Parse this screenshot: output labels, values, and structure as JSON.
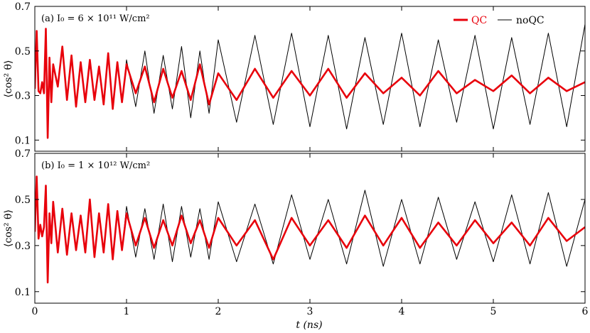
{
  "chart_data": {
    "type": "line",
    "xlabel": "t (ns)",
    "xlim": [
      0,
      6
    ],
    "xticks": [
      "0",
      "1",
      "2",
      "3",
      "4",
      "5",
      "6"
    ],
    "legend": {
      "placement": "top-right",
      "entries": [
        "QC",
        "noQC"
      ]
    },
    "colors": {
      "QC": "#e8000b",
      "noQC": "#000000"
    },
    "panels": [
      {
        "label": "(a) I₀ = 6 × 10¹¹ W/cm²",
        "ylabel": "⟨cos² θ⟩",
        "ylim": [
          0.05,
          0.7
        ],
        "yticks": [
          "0.1",
          "0.3",
          "0.5",
          "0.7"
        ],
        "series": [
          {
            "name": "QC",
            "x": [
              0,
              0.02,
              0.04,
              0.06,
              0.08,
              0.1,
              0.12,
              0.14,
              0.16,
              0.18,
              0.2,
              0.25,
              0.3,
              0.35,
              0.4,
              0.45,
              0.5,
              0.55,
              0.6,
              0.65,
              0.7,
              0.75,
              0.8,
              0.85,
              0.9,
              0.95,
              1.0,
              1.1,
              1.2,
              1.3,
              1.4,
              1.5,
              1.6,
              1.7,
              1.8,
              1.9,
              2.0,
              2.2,
              2.4,
              2.6,
              2.8,
              3.0,
              3.2,
              3.4,
              3.6,
              3.8,
              4.0,
              4.2,
              4.4,
              4.6,
              4.8,
              5.0,
              5.2,
              5.4,
              5.6,
              5.8,
              6.0
            ],
            "y": [
              0.33,
              0.59,
              0.32,
              0.31,
              0.36,
              0.31,
              0.6,
              0.11,
              0.47,
              0.27,
              0.44,
              0.34,
              0.52,
              0.28,
              0.48,
              0.25,
              0.45,
              0.27,
              0.46,
              0.28,
              0.43,
              0.26,
              0.49,
              0.24,
              0.45,
              0.27,
              0.44,
              0.31,
              0.43,
              0.27,
              0.42,
              0.29,
              0.41,
              0.28,
              0.44,
              0.26,
              0.4,
              0.28,
              0.42,
              0.29,
              0.41,
              0.3,
              0.42,
              0.29,
              0.4,
              0.31,
              0.38,
              0.3,
              0.41,
              0.31,
              0.37,
              0.32,
              0.39,
              0.31,
              0.38,
              0.32,
              0.36
            ]
          },
          {
            "name": "noQC",
            "x": [
              0,
              0.02,
              0.04,
              0.06,
              0.08,
              0.1,
              0.12,
              0.14,
              0.16,
              0.18,
              0.2,
              0.25,
              0.3,
              0.35,
              0.4,
              0.45,
              0.5,
              0.55,
              0.6,
              0.65,
              0.7,
              0.75,
              0.8,
              0.85,
              0.9,
              0.95,
              1.0,
              1.1,
              1.2,
              1.3,
              1.4,
              1.5,
              1.6,
              1.7,
              1.8,
              1.9,
              2.0,
              2.2,
              2.4,
              2.6,
              2.8,
              3.0,
              3.2,
              3.4,
              3.6,
              3.8,
              4.0,
              4.2,
              4.4,
              4.6,
              4.8,
              5.0,
              5.2,
              5.4,
              5.6,
              5.8,
              6.0
            ],
            "y": [
              0.33,
              0.59,
              0.32,
              0.31,
              0.36,
              0.31,
              0.6,
              0.11,
              0.47,
              0.27,
              0.44,
              0.34,
              0.52,
              0.28,
              0.48,
              0.25,
              0.45,
              0.27,
              0.46,
              0.28,
              0.43,
              0.26,
              0.49,
              0.24,
              0.45,
              0.27,
              0.46,
              0.25,
              0.5,
              0.22,
              0.48,
              0.24,
              0.52,
              0.2,
              0.5,
              0.22,
              0.55,
              0.18,
              0.57,
              0.17,
              0.58,
              0.16,
              0.57,
              0.15,
              0.56,
              0.17,
              0.58,
              0.16,
              0.55,
              0.18,
              0.57,
              0.15,
              0.56,
              0.17,
              0.58,
              0.16,
              0.62
            ]
          }
        ]
      },
      {
        "label": "(b) I₀ = 1 × 10¹² W/cm²",
        "ylabel": "⟨cos² θ⟩",
        "ylim": [
          0.05,
          0.7
        ],
        "yticks": [
          "0.1",
          "0.3",
          "0.5",
          "0.7"
        ],
        "series": [
          {
            "name": "QC",
            "x": [
              0,
              0.02,
              0.04,
              0.06,
              0.08,
              0.1,
              0.12,
              0.14,
              0.16,
              0.18,
              0.2,
              0.25,
              0.3,
              0.35,
              0.4,
              0.45,
              0.5,
              0.55,
              0.6,
              0.65,
              0.7,
              0.75,
              0.8,
              0.85,
              0.9,
              0.95,
              1.0,
              1.1,
              1.2,
              1.3,
              1.4,
              1.5,
              1.6,
              1.7,
              1.8,
              1.9,
              2.0,
              2.2,
              2.4,
              2.6,
              2.8,
              3.0,
              3.2,
              3.4,
              3.6,
              3.8,
              4.0,
              4.2,
              4.4,
              4.6,
              4.8,
              5.0,
              5.2,
              5.4,
              5.6,
              5.8,
              6.0
            ],
            "y": [
              0.36,
              0.6,
              0.33,
              0.39,
              0.34,
              0.38,
              0.56,
              0.14,
              0.44,
              0.31,
              0.49,
              0.27,
              0.46,
              0.26,
              0.44,
              0.28,
              0.43,
              0.27,
              0.5,
              0.25,
              0.44,
              0.27,
              0.48,
              0.24,
              0.45,
              0.28,
              0.44,
              0.3,
              0.42,
              0.29,
              0.41,
              0.3,
              0.43,
              0.31,
              0.41,
              0.29,
              0.42,
              0.3,
              0.41,
              0.24,
              0.42,
              0.3,
              0.41,
              0.29,
              0.43,
              0.3,
              0.42,
              0.29,
              0.4,
              0.3,
              0.41,
              0.31,
              0.4,
              0.3,
              0.42,
              0.32,
              0.38
            ]
          },
          {
            "name": "noQC",
            "x": [
              0,
              0.02,
              0.04,
              0.06,
              0.08,
              0.1,
              0.12,
              0.14,
              0.16,
              0.18,
              0.2,
              0.25,
              0.3,
              0.35,
              0.4,
              0.45,
              0.5,
              0.55,
              0.6,
              0.65,
              0.7,
              0.75,
              0.8,
              0.85,
              0.9,
              0.95,
              1.0,
              1.1,
              1.2,
              1.3,
              1.4,
              1.5,
              1.6,
              1.7,
              1.8,
              1.9,
              2.0,
              2.2,
              2.4,
              2.6,
              2.8,
              3.0,
              3.2,
              3.4,
              3.6,
              3.8,
              4.0,
              4.2,
              4.4,
              4.6,
              4.8,
              5.0,
              5.2,
              5.4,
              5.6,
              5.8,
              6.0
            ],
            "y": [
              0.36,
              0.6,
              0.33,
              0.39,
              0.34,
              0.38,
              0.56,
              0.14,
              0.44,
              0.31,
              0.49,
              0.27,
              0.46,
              0.26,
              0.44,
              0.28,
              0.43,
              0.27,
              0.5,
              0.25,
              0.44,
              0.27,
              0.48,
              0.24,
              0.45,
              0.28,
              0.47,
              0.25,
              0.46,
              0.24,
              0.48,
              0.23,
              0.47,
              0.25,
              0.46,
              0.24,
              0.49,
              0.23,
              0.48,
              0.22,
              0.52,
              0.24,
              0.5,
              0.22,
              0.54,
              0.21,
              0.5,
              0.22,
              0.51,
              0.24,
              0.49,
              0.23,
              0.52,
              0.22,
              0.53,
              0.21,
              0.5
            ]
          }
        ]
      }
    ]
  }
}
